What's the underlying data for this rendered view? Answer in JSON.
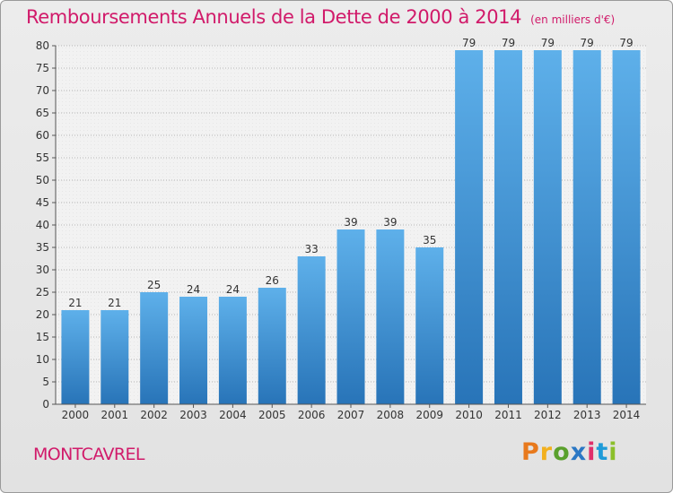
{
  "header": {
    "title": "Remboursements Annuels de la Dette de 2000 à 2014",
    "unit": "(en milliers d'€)"
  },
  "footer": {
    "commune": "MONTCAVREL",
    "logo_letters": [
      "P",
      "r",
      "o",
      "x",
      "i",
      "t",
      "i"
    ],
    "logo_colors": [
      "#e8791c",
      "#f2b01e",
      "#5aa02c",
      "#2a77c4",
      "#e02f6a",
      "#1f9bd8",
      "#8bbf2a"
    ],
    "logo_text": "Proxiti"
  },
  "colors": {
    "title": "#d11a6a",
    "bar_top": "#5eb0ea",
    "bar_bottom": "#2874b8",
    "grid": "#b5b5b5"
  },
  "chart_data": {
    "type": "bar",
    "title": "Remboursements Annuels de la Dette de 2000 à 2014",
    "unit": "(en milliers d'€)",
    "xlabel": "",
    "ylabel": "",
    "categories": [
      "2000",
      "2001",
      "2002",
      "2003",
      "2004",
      "2005",
      "2006",
      "2007",
      "2008",
      "2009",
      "2010",
      "2011",
      "2012",
      "2013",
      "2014"
    ],
    "values": [
      21,
      21,
      25,
      24,
      24,
      26,
      33,
      39,
      39,
      35,
      79,
      79,
      79,
      79,
      79
    ],
    "ylim": [
      0,
      80
    ],
    "yticks": [
      0,
      5,
      10,
      15,
      20,
      25,
      30,
      35,
      40,
      45,
      50,
      55,
      60,
      65,
      70,
      75,
      80
    ],
    "grid": true,
    "data_labels": true
  }
}
